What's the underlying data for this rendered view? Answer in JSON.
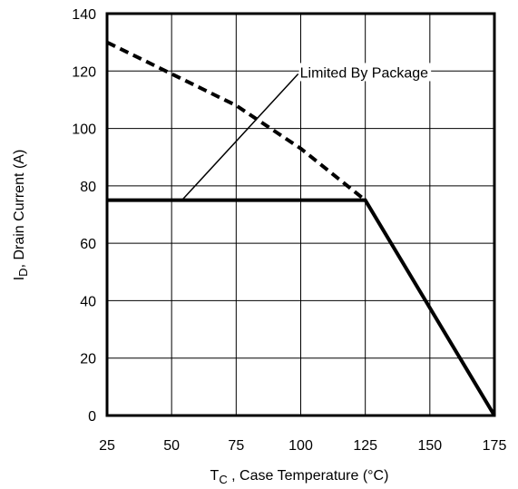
{
  "chart_data": {
    "type": "line",
    "xlabel": {
      "main": "T",
      "sub": "C",
      "rest": " , Case Temperature (°C)"
    },
    "ylabel": {
      "main": "I",
      "sub": "D",
      "rest": ",  Drain Current (A)"
    },
    "series": [
      {
        "style": "dashed",
        "color": "#000000",
        "x": [
          25,
          50,
          75,
          100,
          125
        ],
        "values": [
          130,
          119,
          108,
          93,
          75
        ]
      },
      {
        "style": "solid",
        "color": "#000000",
        "x": [
          25,
          125,
          175
        ],
        "values": [
          75,
          75,
          0
        ]
      }
    ],
    "annotations": [
      {
        "text": "Limited By Package",
        "x": 99,
        "y": 119,
        "from_x": 54,
        "from_y": 75
      }
    ],
    "xlim": [
      25,
      175
    ],
    "xticks": [
      25,
      50,
      75,
      100,
      125,
      150,
      175
    ],
    "ylim": [
      0,
      140
    ],
    "yticks": [
      0,
      20,
      40,
      60,
      80,
      100,
      120,
      140
    ],
    "grid": true
  }
}
